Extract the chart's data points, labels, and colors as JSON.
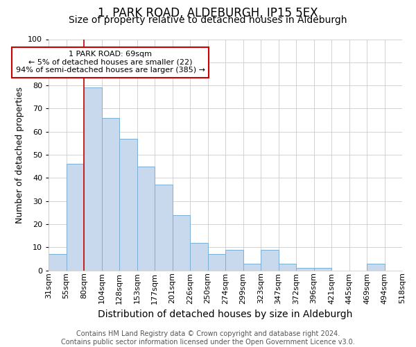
{
  "title": "1, PARK ROAD, ALDEBURGH, IP15 5EX",
  "subtitle": "Size of property relative to detached houses in Aldeburgh",
  "xlabel": "Distribution of detached houses by size in Aldeburgh",
  "ylabel": "Number of detached properties",
  "bar_heights": [
    7,
    46,
    79,
    66,
    57,
    45,
    37,
    24,
    12,
    7,
    9,
    3,
    9,
    3,
    1,
    1,
    0,
    0,
    3,
    0
  ],
  "x_labels": [
    "31sqm",
    "55sqm",
    "80sqm",
    "104sqm",
    "128sqm",
    "153sqm",
    "177sqm",
    "201sqm",
    "226sqm",
    "250sqm",
    "274sqm",
    "299sqm",
    "323sqm",
    "347sqm",
    "372sqm",
    "396sqm",
    "421sqm",
    "445sqm",
    "469sqm",
    "494sqm",
    "518sqm"
  ],
  "bar_color": "#c8d9ee",
  "bar_edge_color": "#7aafd4",
  "grid_color": "#cccccc",
  "vline_color": "#cc0000",
  "annotation_text": "1 PARK ROAD: 69sqm\n← 5% of detached houses are smaller (22)\n94% of semi-detached houses are larger (385) →",
  "annotation_box_color": "#ffffff",
  "annotation_border_color": "#cc0000",
  "ylim": [
    0,
    100
  ],
  "yticks": [
    0,
    10,
    20,
    30,
    40,
    50,
    60,
    70,
    80,
    90,
    100
  ],
  "footnote": "Contains HM Land Registry data © Crown copyright and database right 2024.\nContains public sector information licensed under the Open Government Licence v3.0.",
  "title_fontsize": 12,
  "subtitle_fontsize": 10,
  "xlabel_fontsize": 10,
  "ylabel_fontsize": 9,
  "tick_fontsize": 8,
  "footnote_fontsize": 7,
  "bg_color": "#ffffff"
}
